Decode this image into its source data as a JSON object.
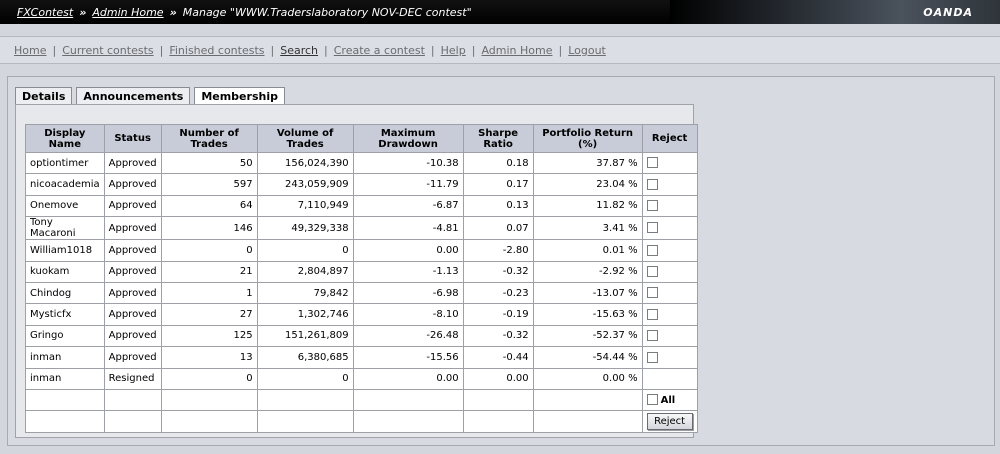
{
  "header": {
    "crumb_home": "FXContest",
    "sep": "»",
    "crumb_admin": "Admin Home",
    "title": "Manage \"WWW.Traderslaboratory NOV-DEC contest\"",
    "brand": "OANDA"
  },
  "nav": {
    "items": [
      "Home",
      "Current contests",
      "Finished contests",
      "Search",
      "Create a contest",
      "Help",
      "Admin Home",
      "Logout"
    ],
    "separator": "|"
  },
  "tabs": [
    "Details",
    "Announcements",
    "Membership"
  ],
  "table": {
    "headers": [
      "Display Name",
      "Status",
      "Number of Trades",
      "Volume of Trades",
      "Maximum Drawdown",
      "Sharpe Ratio",
      "Portfolio Return (%)",
      "Reject"
    ],
    "rows": [
      {
        "name": "optiontimer",
        "status": "Approved",
        "trades": "50",
        "volume": "156,024,390",
        "drawdown": "-10.38",
        "sharpe": "0.18",
        "return": "37.87 %",
        "checkbox": true
      },
      {
        "name": "nicoacademia",
        "status": "Approved",
        "trades": "597",
        "volume": "243,059,909",
        "drawdown": "-11.79",
        "sharpe": "0.17",
        "return": "23.04 %",
        "checkbox": true
      },
      {
        "name": "Onemove",
        "status": "Approved",
        "trades": "64",
        "volume": "7,110,949",
        "drawdown": "-6.87",
        "sharpe": "0.13",
        "return": "11.82 %",
        "checkbox": true
      },
      {
        "name": "Tony Macaroni",
        "status": "Approved",
        "trades": "146",
        "volume": "49,329,338",
        "drawdown": "-4.81",
        "sharpe": "0.07",
        "return": "3.41 %",
        "checkbox": true
      },
      {
        "name": "William1018",
        "status": "Approved",
        "trades": "0",
        "volume": "0",
        "drawdown": "0.00",
        "sharpe": "-2.80",
        "return": "0.01 %",
        "checkbox": true
      },
      {
        "name": "kuokam",
        "status": "Approved",
        "trades": "21",
        "volume": "2,804,897",
        "drawdown": "-1.13",
        "sharpe": "-0.32",
        "return": "-2.92 %",
        "checkbox": true
      },
      {
        "name": "Chindog",
        "status": "Approved",
        "trades": "1",
        "volume": "79,842",
        "drawdown": "-6.98",
        "sharpe": "-0.23",
        "return": "-13.07 %",
        "checkbox": true
      },
      {
        "name": "Mysticfx",
        "status": "Approved",
        "trades": "27",
        "volume": "1,302,746",
        "drawdown": "-8.10",
        "sharpe": "-0.19",
        "return": "-15.63 %",
        "checkbox": true
      },
      {
        "name": "Gringo",
        "status": "Approved",
        "trades": "125",
        "volume": "151,261,809",
        "drawdown": "-26.48",
        "sharpe": "-0.32",
        "return": "-52.37 %",
        "checkbox": true
      },
      {
        "name": "inman",
        "status": "Approved",
        "trades": "13",
        "volume": "6,380,685",
        "drawdown": "-15.56",
        "sharpe": "-0.44",
        "return": "-54.44 %",
        "checkbox": true
      },
      {
        "name": "inman",
        "status": "Resigned",
        "trades": "0",
        "volume": "0",
        "drawdown": "0.00",
        "sharpe": "0.00",
        "return": "0.00 %",
        "checkbox": false
      }
    ],
    "all_label": "All",
    "reject_button": "Reject"
  }
}
